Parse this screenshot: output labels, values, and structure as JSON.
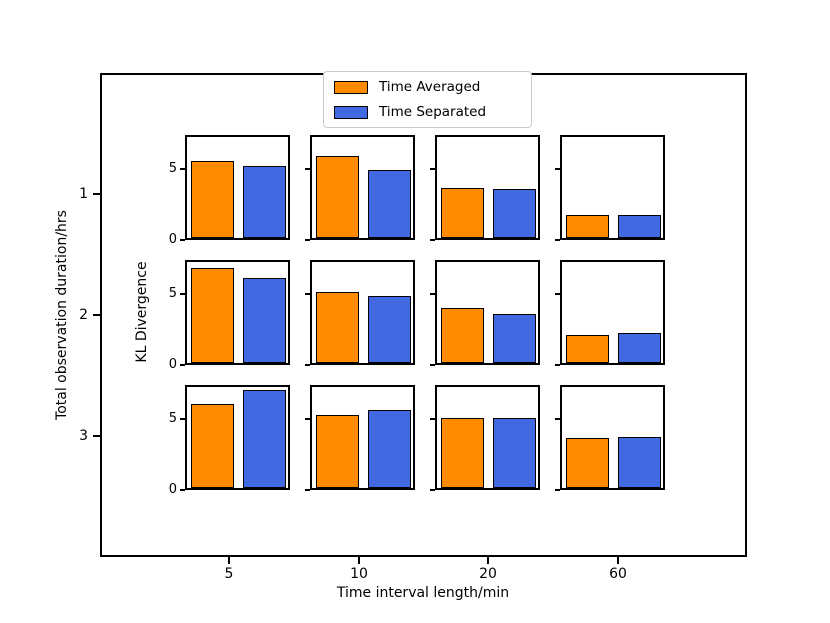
{
  "legend": {
    "items": [
      {
        "label": "Time Averaged",
        "color": "#ff8c00"
      },
      {
        "label": "Time Separated",
        "color": "#4169e1"
      }
    ]
  },
  "chart_data": {
    "type": "bar",
    "title": "",
    "xlabel": "Time interval length/min",
    "ylabel": "Total observation duration/hrs",
    "panel_ylabel": "KL Divergence",
    "legend_position": "upper center",
    "grid_shape": {
      "rows": 3,
      "cols": 4
    },
    "outer_x_categories": [
      "5",
      "10",
      "20",
      "60"
    ],
    "outer_y_categories": [
      "1",
      "2",
      "3"
    ],
    "ylim": [
      0,
      7.4
    ],
    "yticks": [
      0,
      5
    ],
    "series_names": [
      "Time Averaged",
      "Time Separated"
    ],
    "panels": [
      {
        "duration_hrs": "1",
        "interval_min": "5",
        "time_averaged": 5.4,
        "time_separated": 5.05
      },
      {
        "duration_hrs": "1",
        "interval_min": "10",
        "time_averaged": 5.75,
        "time_separated": 4.8
      },
      {
        "duration_hrs": "1",
        "interval_min": "20",
        "time_averaged": 3.55,
        "time_separated": 3.45
      },
      {
        "duration_hrs": "1",
        "interval_min": "60",
        "time_averaged": 1.65,
        "time_separated": 1.6
      },
      {
        "duration_hrs": "2",
        "interval_min": "5",
        "time_averaged": 6.7,
        "time_separated": 6.0
      },
      {
        "duration_hrs": "2",
        "interval_min": "10",
        "time_averaged": 5.0,
        "time_separated": 4.75
      },
      {
        "duration_hrs": "2",
        "interval_min": "20",
        "time_averaged": 3.9,
        "time_separated": 3.45
      },
      {
        "duration_hrs": "2",
        "interval_min": "60",
        "time_averaged": 1.95,
        "time_separated": 2.1
      },
      {
        "duration_hrs": "3",
        "interval_min": "5",
        "time_averaged": 5.9,
        "time_separated": 6.9
      },
      {
        "duration_hrs": "3",
        "interval_min": "10",
        "time_averaged": 5.15,
        "time_separated": 5.5
      },
      {
        "duration_hrs": "3",
        "interval_min": "20",
        "time_averaged": 4.9,
        "time_separated": 4.95
      },
      {
        "duration_hrs": "3",
        "interval_min": "60",
        "time_averaged": 3.55,
        "time_separated": 3.6
      }
    ]
  }
}
